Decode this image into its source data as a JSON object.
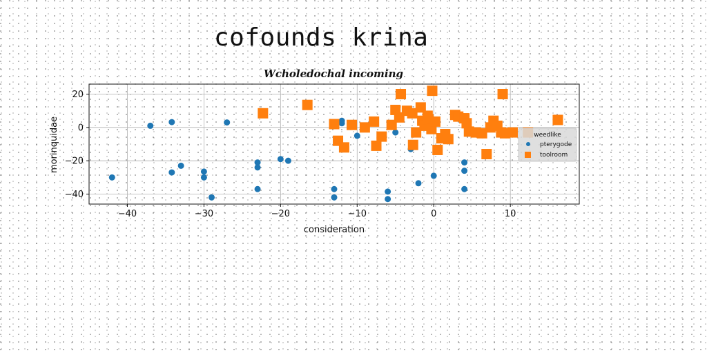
{
  "page": {
    "title": "cofounds krina"
  },
  "chart_data": {
    "type": "scatter",
    "title": "Wcholedochal incoming",
    "xlabel": "consideration",
    "ylabel": "morinquidae",
    "xlim": [
      -45,
      19
    ],
    "ylim": [
      -46,
      26
    ],
    "xticks": [
      -40,
      -30,
      -20,
      -10,
      0,
      10
    ],
    "yticks": [
      -40,
      -20,
      0,
      20
    ],
    "grid": true,
    "legend": {
      "title": "weedlike",
      "position": "right"
    },
    "series": [
      {
        "name": "pterygode",
        "color": "#1f77b4",
        "marker": "circle",
        "points": [
          [
            -42,
            -30
          ],
          [
            -37,
            1
          ],
          [
            -34.2,
            3.2
          ],
          [
            -34.2,
            -27
          ],
          [
            -33,
            -23
          ],
          [
            -30,
            -26.5
          ],
          [
            -30,
            -30
          ],
          [
            -29,
            -42
          ],
          [
            -27,
            3
          ],
          [
            -23,
            -21
          ],
          [
            -23,
            -24
          ],
          [
            -23,
            -37
          ],
          [
            -20,
            -19
          ],
          [
            -19,
            -20
          ],
          [
            -13,
            -37
          ],
          [
            -13,
            -42
          ],
          [
            -12,
            4
          ],
          [
            -12,
            2.5
          ],
          [
            -10,
            -5
          ],
          [
            -6,
            -38.5
          ],
          [
            -6,
            -43
          ],
          [
            -5,
            -3
          ],
          [
            -3,
            -13
          ],
          [
            -2,
            -33.5
          ],
          [
            0,
            -29
          ],
          [
            4,
            -21
          ],
          [
            4,
            -26
          ],
          [
            4,
            -37
          ]
        ]
      },
      {
        "name": "toolroom",
        "color": "#ff7f0e",
        "marker": "square",
        "points": [
          [
            -22.3,
            8.5
          ],
          [
            -16.5,
            13.5
          ],
          [
            -13,
            2
          ],
          [
            -12.5,
            -8
          ],
          [
            -11.7,
            -12
          ],
          [
            -10.7,
            1.5
          ],
          [
            -9,
            0
          ],
          [
            -7.8,
            3.5
          ],
          [
            -7.5,
            -11
          ],
          [
            -6.8,
            -5.5
          ],
          [
            -5.5,
            1.5
          ],
          [
            -5,
            10.5
          ],
          [
            -4.5,
            6
          ],
          [
            -4.3,
            20
          ],
          [
            -3.5,
            10
          ],
          [
            -2.8,
            8.5
          ],
          [
            -2.7,
            -10.5
          ],
          [
            -2.3,
            -3
          ],
          [
            -1.7,
            12
          ],
          [
            -1.5,
            4
          ],
          [
            -1.2,
            1
          ],
          [
            -0.8,
            7
          ],
          [
            -0.7,
            5
          ],
          [
            -0.3,
            -1
          ],
          [
            -0.2,
            22
          ],
          [
            0.2,
            3.5
          ],
          [
            0.5,
            -13.5
          ],
          [
            1,
            -6.5
          ],
          [
            1.5,
            -4
          ],
          [
            1.9,
            -7
          ],
          [
            2.8,
            7.5
          ],
          [
            3.2,
            6.5
          ],
          [
            4,
            5.5
          ],
          [
            4.3,
            2.5
          ],
          [
            4.6,
            -2.5
          ],
          [
            5.5,
            -3
          ],
          [
            6.3,
            -3.5
          ],
          [
            6.9,
            -16
          ],
          [
            7.4,
            0
          ],
          [
            7.8,
            4
          ],
          [
            8.3,
            1
          ],
          [
            8.8,
            -3
          ],
          [
            9,
            20
          ],
          [
            9.3,
            -3.5
          ],
          [
            10.3,
            -3
          ],
          [
            12.3,
            -3
          ],
          [
            16.2,
            4.5
          ]
        ]
      }
    ]
  }
}
